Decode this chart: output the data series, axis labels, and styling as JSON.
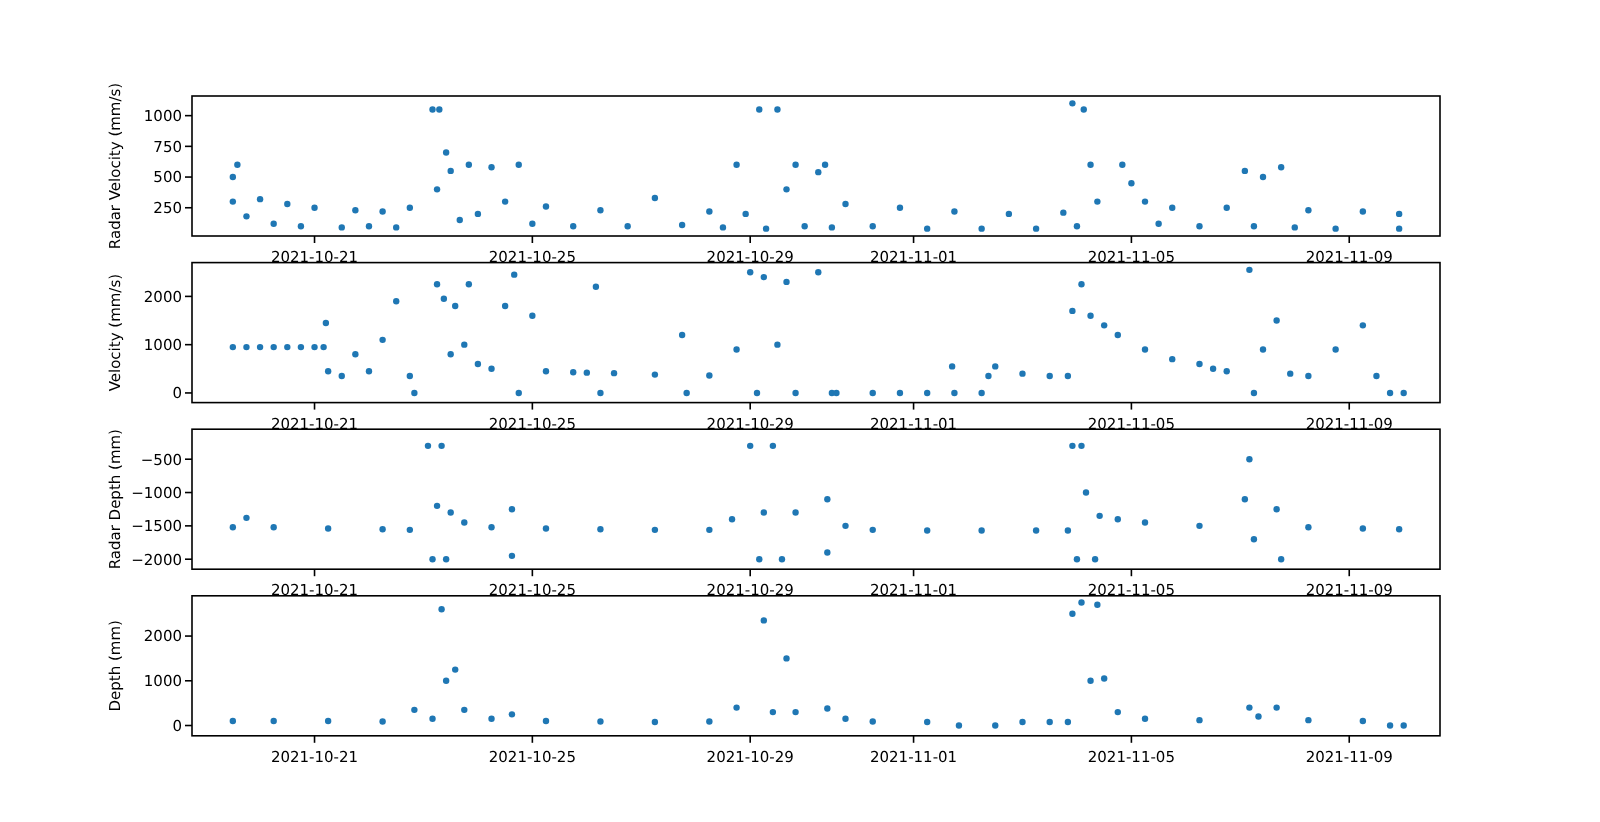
{
  "chart_data": [
    {
      "type": "scatter",
      "ylabel": "Radar Velocity (mm/s)",
      "color": "#1f77b4",
      "marker": "circle",
      "xlim": [
        "2021-10-18T18:00",
        "2021-11-10T16:00"
      ],
      "xticks": [
        "2021-10-21",
        "2021-10-25",
        "2021-10-29",
        "2021-11-01",
        "2021-11-05",
        "2021-11-09"
      ],
      "ylim": [
        20,
        1160
      ],
      "yticks": [
        250,
        500,
        750,
        1000
      ],
      "x": [
        "2021-10-19T12:00",
        "2021-10-19T12:00",
        "2021-10-19T14:00",
        "2021-10-19T18:00",
        "2021-10-20T00:00",
        "2021-10-20T06:00",
        "2021-10-20T12:00",
        "2021-10-20T18:00",
        "2021-10-21T00:00",
        "2021-10-21T12:00",
        "2021-10-21T18:00",
        "2021-10-22T00:00",
        "2021-10-22T06:00",
        "2021-10-22T12:00",
        "2021-10-22T18:00",
        "2021-10-23T04:00",
        "2021-10-23T06:00",
        "2021-10-23T07:00",
        "2021-10-23T10:00",
        "2021-10-23T12:00",
        "2021-10-23T16:00",
        "2021-10-23T20:00",
        "2021-10-24T00:00",
        "2021-10-24T06:00",
        "2021-10-24T12:00",
        "2021-10-24T18:00",
        "2021-10-25T00:00",
        "2021-10-25T06:00",
        "2021-10-25T18:00",
        "2021-10-26T06:00",
        "2021-10-26T18:00",
        "2021-10-27T06:00",
        "2021-10-27T18:00",
        "2021-10-28T06:00",
        "2021-10-28T12:00",
        "2021-10-28T18:00",
        "2021-10-28T22:00",
        "2021-10-29T04:00",
        "2021-10-29T07:00",
        "2021-10-29T12:00",
        "2021-10-29T16:00",
        "2021-10-29T20:00",
        "2021-10-30T00:00",
        "2021-10-30T06:00",
        "2021-10-30T09:00",
        "2021-10-30T12:00",
        "2021-10-30T18:00",
        "2021-10-31T06:00",
        "2021-10-31T18:00",
        "2021-11-01T06:00",
        "2021-11-01T18:00",
        "2021-11-02T06:00",
        "2021-11-02T18:00",
        "2021-11-03T06:00",
        "2021-11-03T18:00",
        "2021-11-03T22:00",
        "2021-11-04T00:00",
        "2021-11-04T03:00",
        "2021-11-04T06:00",
        "2021-11-04T09:00",
        "2021-11-04T20:00",
        "2021-11-05T00:00",
        "2021-11-05T06:00",
        "2021-11-05T12:00",
        "2021-11-05T18:00",
        "2021-11-06T06:00",
        "2021-11-06T18:00",
        "2021-11-07T02:00",
        "2021-11-07T06:00",
        "2021-11-07T10:00",
        "2021-11-07T18:00",
        "2021-11-08T00:00",
        "2021-11-08T06:00",
        "2021-11-08T18:00",
        "2021-11-09T06:00",
        "2021-11-09T22:00",
        "2021-11-09T22:00"
      ],
      "values": [
        300,
        500,
        600,
        180,
        320,
        120,
        280,
        100,
        250,
        90,
        230,
        100,
        220,
        90,
        250,
        1050,
        400,
        1050,
        700,
        550,
        150,
        600,
        200,
        580,
        300,
        600,
        120,
        260,
        100,
        230,
        100,
        330,
        110,
        220,
        90,
        600,
        200,
        1050,
        80,
        1050,
        400,
        600,
        100,
        540,
        600,
        90,
        280,
        100,
        250,
        80,
        220,
        80,
        200,
        80,
        210,
        1100,
        100,
        1050,
        600,
        300,
        600,
        450,
        300,
        120,
        250,
        100,
        250,
        550,
        100,
        500,
        580,
        90,
        230,
        80,
        220,
        80,
        200
      ]
    },
    {
      "type": "scatter",
      "ylabel": "Velocity (mm/s)",
      "color": "#1f77b4",
      "marker": "circle",
      "xlim": [
        "2021-10-18T18:00",
        "2021-11-10T16:00"
      ],
      "xticks": [
        "2021-10-21",
        "2021-10-25",
        "2021-10-29",
        "2021-11-01",
        "2021-11-05",
        "2021-11-09"
      ],
      "ylim": [
        -200,
        2700
      ],
      "yticks": [
        0,
        1000,
        2000
      ],
      "x": [
        "2021-10-19T12:00",
        "2021-10-19T18:00",
        "2021-10-20T00:00",
        "2021-10-20T06:00",
        "2021-10-20T12:00",
        "2021-10-20T18:00",
        "2021-10-21T00:00",
        "2021-10-21T04:00",
        "2021-10-21T05:00",
        "2021-10-21T06:00",
        "2021-10-21T12:00",
        "2021-10-21T18:00",
        "2021-10-22T00:00",
        "2021-10-22T06:00",
        "2021-10-22T12:00",
        "2021-10-22T18:00",
        "2021-10-22T20:00",
        "2021-10-23T06:00",
        "2021-10-23T09:00",
        "2021-10-23T12:00",
        "2021-10-23T14:00",
        "2021-10-23T18:00",
        "2021-10-23T20:00",
        "2021-10-24T00:00",
        "2021-10-24T06:00",
        "2021-10-24T12:00",
        "2021-10-24T16:00",
        "2021-10-24T18:00",
        "2021-10-25T00:00",
        "2021-10-25T06:00",
        "2021-10-25T18:00",
        "2021-10-26T00:00",
        "2021-10-26T04:00",
        "2021-10-26T06:00",
        "2021-10-26T12:00",
        "2021-10-27T06:00",
        "2021-10-27T18:00",
        "2021-10-27T20:00",
        "2021-10-28T06:00",
        "2021-10-28T18:00",
        "2021-10-29T00:00",
        "2021-10-29T03:00",
        "2021-10-29T06:00",
        "2021-10-29T12:00",
        "2021-10-29T16:00",
        "2021-10-29T20:00",
        "2021-10-30T06:00",
        "2021-10-30T12:00",
        "2021-10-30T14:00",
        "2021-10-31T06:00",
        "2021-10-31T18:00",
        "2021-11-01T06:00",
        "2021-11-01T17:00",
        "2021-11-01T18:00",
        "2021-11-02T06:00",
        "2021-11-02T09:00",
        "2021-11-02T12:00",
        "2021-11-03T00:00",
        "2021-11-03T12:00",
        "2021-11-03T20:00",
        "2021-11-03T22:00",
        "2021-11-04T02:00",
        "2021-11-04T06:00",
        "2021-11-04T12:00",
        "2021-11-04T18:00",
        "2021-11-05T06:00",
        "2021-11-05T18:00",
        "2021-11-06T06:00",
        "2021-11-06T12:00",
        "2021-11-06T18:00",
        "2021-11-07T04:00",
        "2021-11-07T06:00",
        "2021-11-07T10:00",
        "2021-11-07T16:00",
        "2021-11-07T22:00",
        "2021-11-08T06:00",
        "2021-11-08T18:00",
        "2021-11-09T06:00",
        "2021-11-09T12:00",
        "2021-11-09T18:00",
        "2021-11-10T00:00"
      ],
      "values": [
        950,
        950,
        950,
        950,
        950,
        950,
        950,
        950,
        1450,
        450,
        350,
        800,
        450,
        1100,
        1900,
        350,
        0,
        2250,
        1950,
        800,
        1800,
        1000,
        2250,
        600,
        500,
        1800,
        2450,
        0,
        1600,
        450,
        430,
        420,
        2200,
        0,
        410,
        380,
        1200,
        0,
        360,
        900,
        2500,
        0,
        2400,
        1000,
        2300,
        0,
        2500,
        0,
        0,
        0,
        0,
        0,
        550,
        0,
        0,
        350,
        550,
        400,
        350,
        350,
        1700,
        2250,
        1600,
        1400,
        1200,
        900,
        700,
        600,
        500,
        450,
        2550,
        0,
        900,
        1500,
        400,
        350,
        900,
        1400,
        350,
        0,
        0
      ]
    },
    {
      "type": "scatter",
      "ylabel": "Radar Depth (mm)",
      "color": "#1f77b4",
      "marker": "circle",
      "xlim": [
        "2021-10-18T18:00",
        "2021-11-10T16:00"
      ],
      "xticks": [
        "2021-10-21",
        "2021-10-25",
        "2021-10-29",
        "2021-11-01",
        "2021-11-05",
        "2021-11-09"
      ],
      "ylim": [
        -2150,
        -50
      ],
      "yticks": [
        {
          "value": -2000,
          "label": "−2000"
        },
        {
          "value": -1500,
          "label": "−1500"
        },
        {
          "value": -1000,
          "label": "−1000"
        },
        {
          "value": -500,
          "label": "−500"
        }
      ],
      "x": [
        "2021-10-19T12:00",
        "2021-10-19T18:00",
        "2021-10-20T06:00",
        "2021-10-21T06:00",
        "2021-10-22T06:00",
        "2021-10-22T18:00",
        "2021-10-23T02:00",
        "2021-10-23T04:00",
        "2021-10-23T06:00",
        "2021-10-23T08:00",
        "2021-10-23T10:00",
        "2021-10-23T12:00",
        "2021-10-23T18:00",
        "2021-10-24T06:00",
        "2021-10-24T15:00",
        "2021-10-24T15:00",
        "2021-10-25T06:00",
        "2021-10-26T06:00",
        "2021-10-27T06:00",
        "2021-10-28T06:00",
        "2021-10-28T16:00",
        "2021-10-29T00:00",
        "2021-10-29T04:00",
        "2021-10-29T06:00",
        "2021-10-29T10:00",
        "2021-10-29T14:00",
        "2021-10-29T20:00",
        "2021-10-30T10:00",
        "2021-10-30T10:00",
        "2021-10-30T18:00",
        "2021-10-31T06:00",
        "2021-11-01T06:00",
        "2021-11-02T06:00",
        "2021-11-03T06:00",
        "2021-11-03T20:00",
        "2021-11-03T22:00",
        "2021-11-04T00:00",
        "2021-11-04T02:00",
        "2021-11-04T04:00",
        "2021-11-04T08:00",
        "2021-11-04T10:00",
        "2021-11-04T18:00",
        "2021-11-05T06:00",
        "2021-11-06T06:00",
        "2021-11-07T02:00",
        "2021-11-07T04:00",
        "2021-11-07T06:00",
        "2021-11-07T16:00",
        "2021-11-07T18:00",
        "2021-11-08T06:00",
        "2021-11-09T06:00",
        "2021-11-09T22:00"
      ],
      "values": [
        -1520,
        -1380,
        -1520,
        -1540,
        -1550,
        -1560,
        -300,
        -2000,
        -1200,
        -300,
        -2000,
        -1300,
        -1450,
        -1520,
        -1250,
        -1950,
        -1540,
        -1550,
        -1560,
        -1560,
        -1400,
        -300,
        -2000,
        -1300,
        -300,
        -2000,
        -1300,
        -1100,
        -1900,
        -1500,
        -1560,
        -1570,
        -1570,
        -1570,
        -1570,
        -300,
        -2000,
        -300,
        -1000,
        -2000,
        -1350,
        -1400,
        -1450,
        -1500,
        -1100,
        -500,
        -1700,
        -1250,
        -2000,
        -1520,
        -1540,
        -1550
      ]
    },
    {
      "type": "scatter",
      "ylabel": "Depth (mm)",
      "color": "#1f77b4",
      "marker": "circle",
      "xlim": [
        "2021-10-18T18:00",
        "2021-11-10T16:00"
      ],
      "xticks": [
        "2021-10-21",
        "2021-10-25",
        "2021-10-29",
        "2021-11-01",
        "2021-11-05",
        "2021-11-09"
      ],
      "ylim": [
        -230,
        2900
      ],
      "yticks": [
        0,
        1000,
        2000
      ],
      "x": [
        "2021-10-19T12:00",
        "2021-10-20T06:00",
        "2021-10-21T06:00",
        "2021-10-22T06:00",
        "2021-10-22T20:00",
        "2021-10-23T04:00",
        "2021-10-23T08:00",
        "2021-10-23T10:00",
        "2021-10-23T14:00",
        "2021-10-23T18:00",
        "2021-10-24T06:00",
        "2021-10-24T15:00",
        "2021-10-25T06:00",
        "2021-10-26T06:00",
        "2021-10-27T06:00",
        "2021-10-28T06:00",
        "2021-10-28T18:00",
        "2021-10-29T06:00",
        "2021-10-29T10:00",
        "2021-10-29T16:00",
        "2021-10-29T20:00",
        "2021-10-30T10:00",
        "2021-10-30T18:00",
        "2021-10-31T06:00",
        "2021-11-01T06:00",
        "2021-11-01T20:00",
        "2021-11-02T12:00",
        "2021-11-03T00:00",
        "2021-11-03T12:00",
        "2021-11-03T20:00",
        "2021-11-03T22:00",
        "2021-11-04T02:00",
        "2021-11-04T06:00",
        "2021-11-04T09:00",
        "2021-11-04T12:00",
        "2021-11-04T18:00",
        "2021-11-05T06:00",
        "2021-11-06T06:00",
        "2021-11-07T04:00",
        "2021-11-07T08:00",
        "2021-11-07T16:00",
        "2021-11-08T06:00",
        "2021-11-09T06:00",
        "2021-11-09T18:00",
        "2021-11-10T00:00"
      ],
      "values": [
        100,
        100,
        100,
        90,
        350,
        150,
        2600,
        1000,
        1250,
        350,
        150,
        250,
        100,
        90,
        80,
        90,
        400,
        2350,
        300,
        1500,
        300,
        380,
        150,
        90,
        80,
        0,
        0,
        80,
        80,
        80,
        2500,
        2750,
        1000,
        2700,
        1050,
        300,
        150,
        120,
        400,
        200,
        400,
        120,
        100,
        0,
        0
      ]
    }
  ]
}
